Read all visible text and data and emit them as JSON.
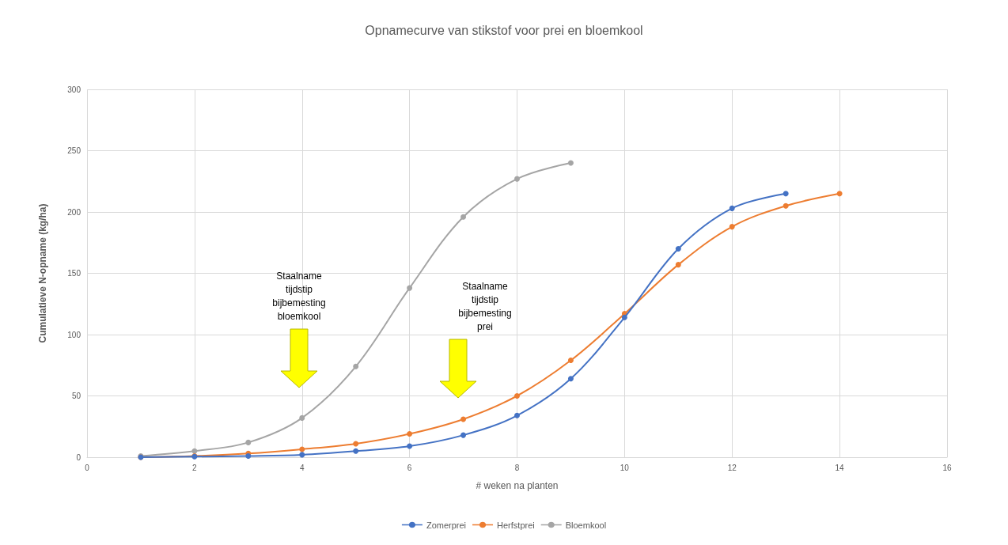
{
  "chart_data": {
    "type": "line",
    "title": "Opnamecurve van stikstof voor prei en bloemkool",
    "xlabel": "# weken na planten",
    "ylabel": "Cumulatieve N-opname (kg/ha)",
    "series": [
      {
        "name": "Zomerprei",
        "color": "#4472c4",
        "x": [
          1,
          2,
          3,
          4,
          5,
          6,
          7,
          8,
          9,
          10,
          11,
          12,
          13
        ],
        "values": [
          0,
          0.5,
          1,
          2,
          5,
          9,
          18,
          34,
          64,
          114,
          170,
          203,
          215
        ]
      },
      {
        "name": "Herfstprei",
        "color": "#ed7d31",
        "x": [
          1,
          2,
          3,
          4,
          5,
          6,
          7,
          8,
          9,
          10,
          11,
          12,
          13,
          14
        ],
        "values": [
          0,
          1,
          3,
          6.5,
          11,
          19,
          31,
          50,
          79,
          117,
          157,
          188,
          205,
          215
        ]
      },
      {
        "name": "Bloemkool",
        "color": "#a5a5a5",
        "x": [
          1,
          2,
          3,
          4,
          5,
          6,
          7,
          8,
          9
        ],
        "values": [
          1,
          5,
          12,
          32,
          74,
          138,
          196,
          227,
          240
        ]
      }
    ],
    "xlim": [
      0,
      16
    ],
    "xticks": [
      0,
      2,
      4,
      6,
      8,
      10,
      12,
      14,
      16
    ],
    "ylim": [
      0,
      300
    ],
    "yticks": [
      0,
      50,
      100,
      150,
      200,
      250,
      300
    ],
    "annotations": [
      "Staalname\ntijdstip\nbijbemesting\nbloemkool",
      "Staalname\ntijdstip\nbijbemesting\nprei"
    ],
    "grid": true,
    "legend": "bottom",
    "marker": "circle",
    "line_style": "solid"
  }
}
